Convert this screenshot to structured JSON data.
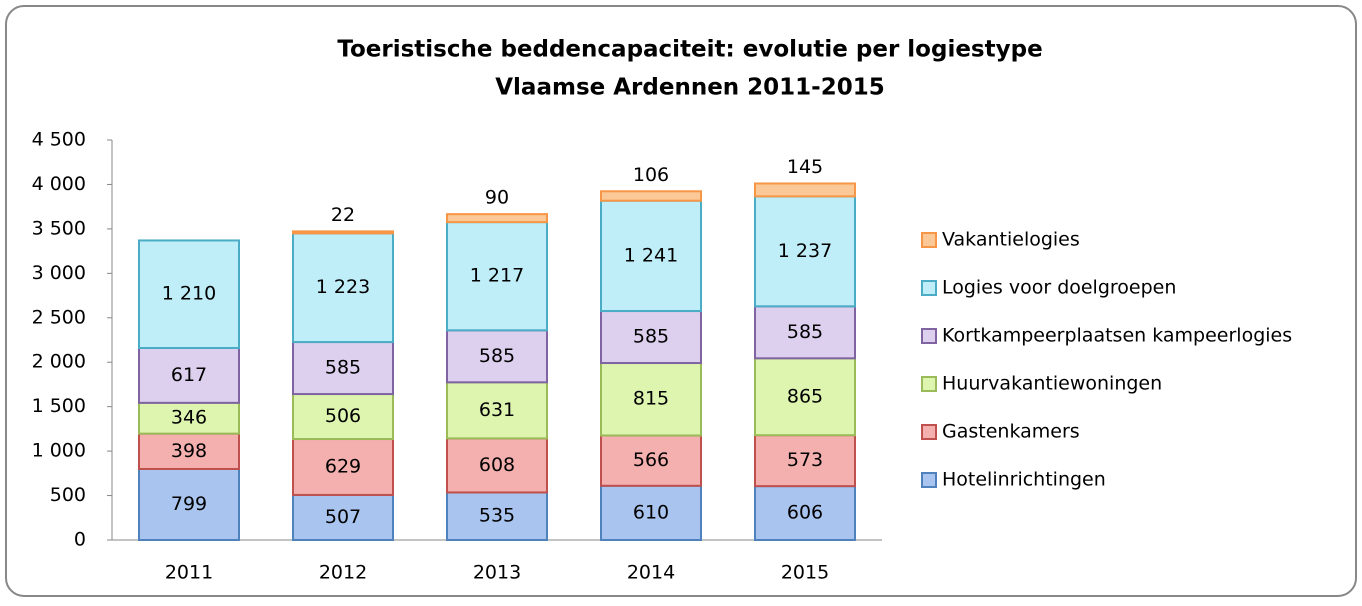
{
  "chart_data": {
    "type": "stacked_bar",
    "title": "Toeristische beddencapaciteit: evolutie per logiestype",
    "subtitle": "Vlaamse Ardennen  2011-2015",
    "categories": [
      "2011",
      "2012",
      "2013",
      "2014",
      "2015"
    ],
    "series": [
      {
        "name": "Hotelinrichtingen",
        "color": "#a9c5ef",
        "stroke": "#4f81bd",
        "values": [
          799,
          507,
          535,
          610,
          606
        ]
      },
      {
        "name": "Gastenkamers",
        "color": "#f4b0ae",
        "stroke": "#c0504d",
        "values": [
          398,
          629,
          608,
          566,
          573
        ]
      },
      {
        "name": "Huurvakantiewoningen",
        "color": "#def5b0",
        "stroke": "#9bbb59",
        "values": [
          346,
          506,
          631,
          815,
          865
        ]
      },
      {
        "name": "Kortkampeerplaatsen kampeerlogies",
        "color": "#dcd0ee",
        "stroke": "#8064a2",
        "values": [
          617,
          585,
          585,
          585,
          585
        ]
      },
      {
        "name": "Logies voor doelgroepen",
        "color": "#bfeef9",
        "stroke": "#4bacc6",
        "values": [
          1210,
          1223,
          1217,
          1241,
          1237
        ],
        "value_labels": [
          "1 210",
          "1 223",
          "1 217",
          "1 241",
          "1 237"
        ]
      },
      {
        "name": "Vakantielogies",
        "color": "#fbc898",
        "stroke": "#f79646",
        "values": [
          null,
          22,
          90,
          106,
          145
        ]
      }
    ],
    "ylim": [
      0,
      4500
    ],
    "yticks": [
      0,
      500,
      {
        "value": 1000,
        "label": "1 000"
      },
      {
        "value": 1500,
        "label": "1 500"
      },
      {
        "value": 2000,
        "label": "2 000"
      },
      {
        "value": 2500,
        "label": "2 500"
      },
      {
        "value": 3000,
        "label": "3 000"
      },
      {
        "value": 3500,
        "label": "3 500"
      },
      {
        "value": 4000,
        "label": "4 000"
      },
      {
        "value": 4500,
        "label": "4 500"
      }
    ],
    "grid": false,
    "legend": "right"
  }
}
